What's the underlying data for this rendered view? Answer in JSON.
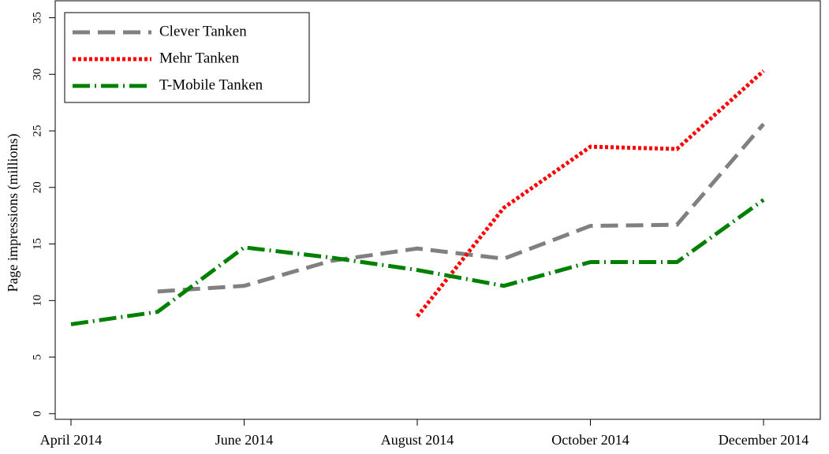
{
  "chart_data": {
    "type": "line",
    "y_label": "Page impressions (millions)",
    "categories": [
      "April 2014",
      null,
      "June 2014",
      null,
      "August 2014",
      null,
      "October 2014",
      null,
      "December 2014"
    ],
    "series": [
      {
        "name": "Clever Tanken",
        "color": "#808080",
        "linestyle": "dashed",
        "values": [
          null,
          10.8,
          11.3,
          13.5,
          14.6,
          13.7,
          16.6,
          16.7,
          25.6
        ]
      },
      {
        "name": "Mehr Tanken",
        "color": "#ff0000",
        "linestyle": "dotted",
        "values": [
          null,
          null,
          null,
          null,
          8.6,
          18.2,
          23.6,
          23.4,
          30.3
        ]
      },
      {
        "name": "T-Mobile Tanken",
        "color": "#008000",
        "linestyle": "dashdot",
        "values": [
          7.9,
          9.0,
          14.7,
          13.8,
          12.7,
          11.3,
          13.4,
          13.4,
          18.9
        ]
      }
    ],
    "ylim": [
      -0.5,
      36.5
    ],
    "yticks": [
      0,
      5,
      10,
      15,
      20,
      25,
      30,
      35
    ],
    "legend": "upper left"
  }
}
